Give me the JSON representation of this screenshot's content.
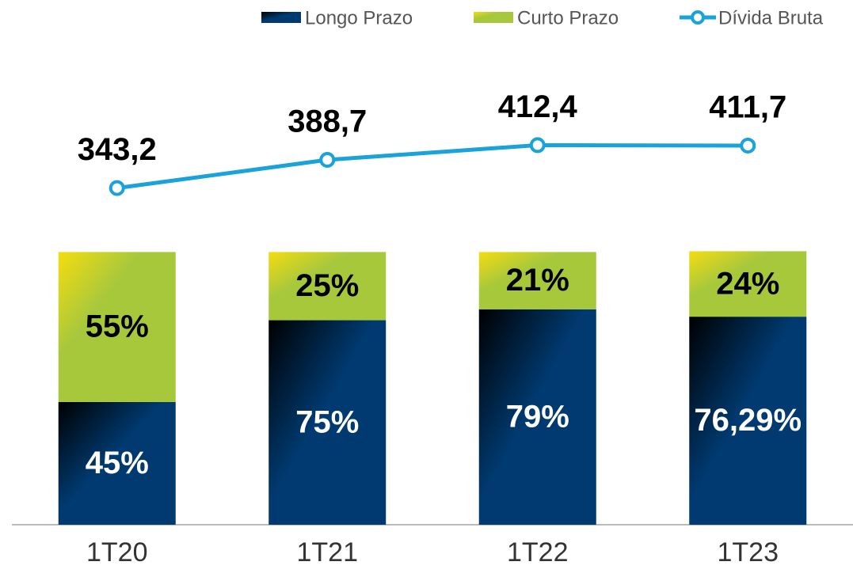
{
  "chart_data": {
    "type": "bar_line",
    "categories": [
      "1T20",
      "1T21",
      "1T22",
      "1T23"
    ],
    "series": [
      {
        "name": "Longo Prazo",
        "color": "#003a70",
        "values": [
          45,
          75,
          79,
          76.29
        ],
        "value_labels": [
          "45%",
          "75%",
          "79%",
          "76,29%"
        ]
      },
      {
        "name": "Curto Prazo",
        "color": "#a8c83c",
        "values": [
          55,
          25,
          21,
          24
        ],
        "value_labels": [
          "55%",
          "25%",
          "21%",
          "24%"
        ]
      },
      {
        "name": "Dívida Bruta",
        "color": "#1aa3d9",
        "axis": "y2",
        "values": [
          343.2,
          388.7,
          412.4,
          411.7
        ],
        "value_labels": [
          "343,2",
          "388,7",
          "412,4",
          "411,7"
        ]
      }
    ],
    "stacked": true,
    "ylim": [
      0,
      175
    ],
    "y2lim": [
      -200,
      570
    ],
    "grid": false,
    "legend": "top-right"
  }
}
